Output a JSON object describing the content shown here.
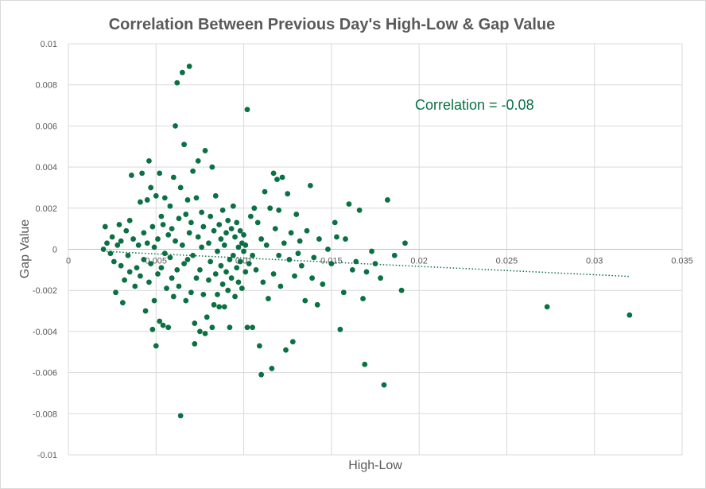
{
  "chart_data": {
    "type": "scatter",
    "title": "Correlation Between Previous Day's High-Low & Gap Value",
    "xlabel": "High-Low",
    "ylabel": "Gap Value",
    "annotation": "Correlation = -0.08",
    "xlim": [
      0,
      0.035
    ],
    "ylim": [
      -0.01,
      0.01
    ],
    "x_ticks": [
      "0",
      "0.005",
      "0.01",
      "0.015",
      "0.02",
      "0.025",
      "0.03",
      "0.035"
    ],
    "y_ticks": [
      "0.01",
      "0.008",
      "0.006",
      "0.004",
      "0.002",
      "0",
      "-0.002",
      "-0.004",
      "-0.006",
      "-0.008",
      "-0.01"
    ],
    "grid": true,
    "point_color": "#0b7043",
    "trendline": {
      "x": [
        0.002,
        0.032
      ],
      "y": [
        -0.0001,
        -0.00132
      ],
      "style": "dotted",
      "color": "#0b7043"
    },
    "points": [
      [
        0.002,
        0.0
      ],
      [
        0.0021,
        0.0011
      ],
      [
        0.0022,
        0.0003
      ],
      [
        0.0024,
        -0.0002
      ],
      [
        0.0025,
        0.0006
      ],
      [
        0.0026,
        -0.0006
      ],
      [
        0.0027,
        -0.0021
      ],
      [
        0.0028,
        0.0002
      ],
      [
        0.0029,
        0.0012
      ],
      [
        0.003,
        -0.0008
      ],
      [
        0.003,
        0.0004
      ],
      [
        0.0031,
        -0.0026
      ],
      [
        0.0032,
        -0.0015
      ],
      [
        0.0033,
        0.0009
      ],
      [
        0.0034,
        -0.0003
      ],
      [
        0.0035,
        0.0014
      ],
      [
        0.0035,
        -0.0011
      ],
      [
        0.0036,
        0.0036
      ],
      [
        0.0037,
        0.0005
      ],
      [
        0.0038,
        -0.0018
      ],
      [
        0.0039,
        -0.0009
      ],
      [
        0.004,
        0.0002
      ],
      [
        0.0041,
        0.0023
      ],
      [
        0.0041,
        -0.0013
      ],
      [
        0.0042,
        0.0037
      ],
      [
        0.0043,
        -0.0005
      ],
      [
        0.0043,
        0.0008
      ],
      [
        0.0044,
        -0.003
      ],
      [
        0.0045,
        0.0024
      ],
      [
        0.0045,
        0.0003
      ],
      [
        0.0046,
        -0.0016
      ],
      [
        0.0046,
        0.0043
      ],
      [
        0.0047,
        -0.0007
      ],
      [
        0.0047,
        0.003
      ],
      [
        0.0048,
        -0.0039
      ],
      [
        0.0048,
        0.0011
      ],
      [
        0.0049,
        -0.0025
      ],
      [
        0.0049,
        0.0001
      ],
      [
        0.005,
        0.0026
      ],
      [
        0.005,
        -0.0047
      ],
      [
        0.0051,
        -0.0012
      ],
      [
        0.0051,
        0.0005
      ],
      [
        0.0052,
        0.0037
      ],
      [
        0.0052,
        -0.0035
      ],
      [
        0.0053,
        0.0016
      ],
      [
        0.0053,
        -0.0009
      ],
      [
        0.0054,
        -0.0037
      ],
      [
        0.0054,
        0.0012
      ],
      [
        0.0055,
        -0.0002
      ],
      [
        0.0055,
        0.0025
      ],
      [
        0.0056,
        -0.0019
      ],
      [
        0.0057,
        -0.0038
      ],
      [
        0.0057,
        0.0007
      ],
      [
        0.0058,
        -0.0004
      ],
      [
        0.0058,
        0.0021
      ],
      [
        0.0059,
        0.001
      ],
      [
        0.0059,
        -0.0014
      ],
      [
        0.006,
        0.0035
      ],
      [
        0.006,
        -0.0023
      ],
      [
        0.0061,
        0.0004
      ],
      [
        0.0061,
        0.006
      ],
      [
        0.0062,
        0.0081
      ],
      [
        0.0062,
        -0.001
      ],
      [
        0.0063,
        0.0015
      ],
      [
        0.0063,
        -0.0018
      ],
      [
        0.0064,
        0.003
      ],
      [
        0.0064,
        -0.0081
      ],
      [
        0.0065,
        0.0002
      ],
      [
        0.0065,
        0.0086
      ],
      [
        0.0066,
        0.0051
      ],
      [
        0.0066,
        -0.0007
      ],
      [
        0.0067,
        0.0017
      ],
      [
        0.0067,
        -0.0025
      ],
      [
        0.0068,
        0.0024
      ],
      [
        0.0068,
        -0.0005
      ],
      [
        0.0069,
        0.0089
      ],
      [
        0.0069,
        0.0008
      ],
      [
        0.007,
        -0.0021
      ],
      [
        0.007,
        0.0013
      ],
      [
        0.0071,
        0.0038
      ],
      [
        0.0071,
        -0.0003
      ],
      [
        0.0072,
        -0.0036
      ],
      [
        0.0072,
        -0.0046
      ],
      [
        0.0073,
        0.0025
      ],
      [
        0.0073,
        -0.0014
      ],
      [
        0.0074,
        0.0043
      ],
      [
        0.0074,
        0.0006
      ],
      [
        0.0075,
        -0.004
      ],
      [
        0.0075,
        -0.001
      ],
      [
        0.0076,
        0.0018
      ],
      [
        0.0076,
        0.0001
      ],
      [
        0.0077,
        -0.0022
      ],
      [
        0.0077,
        0.0011
      ],
      [
        0.0078,
        -0.0041
      ],
      [
        0.0078,
        0.0048
      ],
      [
        0.0079,
        -0.0033
      ],
      [
        0.008,
        0.0003
      ],
      [
        0.008,
        -0.0015
      ],
      [
        0.0081,
        0.0016
      ],
      [
        0.0081,
        -0.0006
      ],
      [
        0.0082,
        -0.0038
      ],
      [
        0.0082,
        0.004
      ],
      [
        0.0083,
        -0.0027
      ],
      [
        0.0083,
        0.0009
      ],
      [
        0.0084,
        -0.0012
      ],
      [
        0.0084,
        0.0026
      ],
      [
        0.0085,
        -0.0001
      ],
      [
        0.0085,
        -0.0022
      ],
      [
        0.0086,
        0.0012
      ],
      [
        0.0086,
        -0.0028
      ],
      [
        0.0087,
        0.0005
      ],
      [
        0.0087,
        -0.0008
      ],
      [
        0.0088,
        0.0019
      ],
      [
        0.0088,
        -0.0017
      ],
      [
        0.0089,
        -0.0028
      ],
      [
        0.0089,
        0.0002
      ],
      [
        0.009,
        -0.0011
      ],
      [
        0.009,
        0.0008
      ],
      [
        0.0091,
        -0.002
      ],
      [
        0.0091,
        0.0014
      ],
      [
        0.0092,
        -0.0005
      ],
      [
        0.0092,
        -0.0038
      ],
      [
        0.0093,
        0.001
      ],
      [
        0.0093,
        -0.0014
      ],
      [
        0.0094,
        0.0021
      ],
      [
        0.0094,
        -0.0003
      ],
      [
        0.0095,
        -0.0023
      ],
      [
        0.0095,
        0.0006
      ],
      [
        0.0096,
        0.0013
      ],
      [
        0.0096,
        -0.0009
      ],
      [
        0.0097,
        -0.0016
      ],
      [
        0.0097,
        0.0001
      ],
      [
        0.0098,
        -0.0006
      ],
      [
        0.0098,
        0.0009
      ],
      [
        0.0099,
        -0.0019
      ],
      [
        0.0099,
        0.0003
      ],
      [
        0.01,
        -0.0001
      ],
      [
        0.01,
        0.0007
      ],
      [
        0.0101,
        -0.0011
      ],
      [
        0.0101,
        0.0002
      ],
      [
        0.0102,
        0.0068
      ],
      [
        0.0102,
        -0.0038
      ],
      [
        0.0103,
        -0.0007
      ],
      [
        0.0104,
        0.0016
      ],
      [
        0.0105,
        -0.0038
      ],
      [
        0.0105,
        -0.0003
      ],
      [
        0.0106,
        0.002
      ],
      [
        0.0107,
        -0.001
      ],
      [
        0.0108,
        0.0013
      ],
      [
        0.0109,
        -0.0047
      ],
      [
        0.011,
        -0.0061
      ],
      [
        0.011,
        0.0005
      ],
      [
        0.0111,
        -0.0016
      ],
      [
        0.0112,
        0.0028
      ],
      [
        0.0113,
        0.0002
      ],
      [
        0.0114,
        -0.0024
      ],
      [
        0.0115,
        0.002
      ],
      [
        0.0116,
        -0.0058
      ],
      [
        0.0117,
        0.0037
      ],
      [
        0.0117,
        -0.0012
      ],
      [
        0.0118,
        0.001
      ],
      [
        0.0119,
        0.0034
      ],
      [
        0.012,
        -0.0003
      ],
      [
        0.012,
        0.0019
      ],
      [
        0.0121,
        -0.0018
      ],
      [
        0.0122,
        0.0035
      ],
      [
        0.0123,
        0.0003
      ],
      [
        0.0124,
        -0.0049
      ],
      [
        0.0125,
        0.0027
      ],
      [
        0.0126,
        -0.0005
      ],
      [
        0.0127,
        0.0008
      ],
      [
        0.0128,
        -0.0045
      ],
      [
        0.0129,
        -0.0013
      ],
      [
        0.013,
        0.0017
      ],
      [
        0.0131,
        -0.0002
      ],
      [
        0.0132,
        0.0004
      ],
      [
        0.0133,
        -0.0008
      ],
      [
        0.0135,
        -0.0025
      ],
      [
        0.0136,
        0.0009
      ],
      [
        0.0138,
        0.0031
      ],
      [
        0.0139,
        -0.0014
      ],
      [
        0.014,
        -0.0004
      ],
      [
        0.0142,
        -0.0027
      ],
      [
        0.0143,
        0.0005
      ],
      [
        0.0145,
        -0.0017
      ],
      [
        0.0148,
        0.0
      ],
      [
        0.015,
        -0.0007
      ],
      [
        0.0152,
        0.0013
      ],
      [
        0.0153,
        0.0006
      ],
      [
        0.0155,
        -0.0039
      ],
      [
        0.0157,
        -0.0021
      ],
      [
        0.0158,
        0.0005
      ],
      [
        0.016,
        0.0022
      ],
      [
        0.0162,
        -0.001
      ],
      [
        0.0164,
        -0.0006
      ],
      [
        0.0166,
        0.0019
      ],
      [
        0.0168,
        -0.0024
      ],
      [
        0.0169,
        -0.0056
      ],
      [
        0.017,
        -0.0011
      ],
      [
        0.0173,
        -0.0001
      ],
      [
        0.0175,
        -0.0007
      ],
      [
        0.0178,
        -0.0014
      ],
      [
        0.018,
        -0.0066
      ],
      [
        0.0182,
        0.0024
      ],
      [
        0.0186,
        -0.0003
      ],
      [
        0.019,
        -0.002
      ],
      [
        0.0192,
        0.0003
      ],
      [
        0.0273,
        -0.0028
      ],
      [
        0.032,
        -0.0032
      ]
    ]
  }
}
